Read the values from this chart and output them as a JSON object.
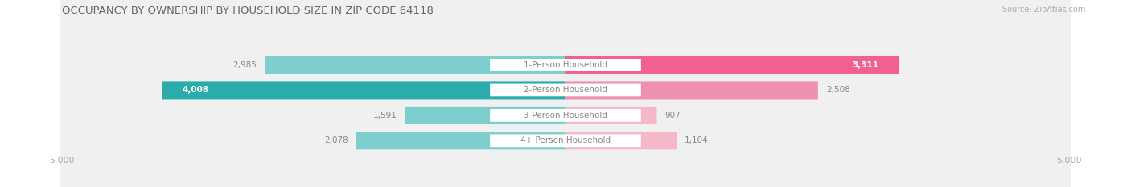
{
  "title": "OCCUPANCY BY OWNERSHIP BY HOUSEHOLD SIZE IN ZIP CODE 64118",
  "source": "Source: ZipAtlas.com",
  "categories": [
    "1-Person Household",
    "2-Person Household",
    "3-Person Household",
    "4+ Person Household"
  ],
  "owner_values": [
    2985,
    4008,
    1591,
    2078
  ],
  "renter_values": [
    3311,
    2508,
    907,
    1104
  ],
  "max_scale": 5000,
  "owner_colors": [
    "#7ECECE",
    "#2AACAC",
    "#7ECECE",
    "#7ECECE"
  ],
  "renter_colors": [
    "#F06090",
    "#F090B0",
    "#F4B8C8",
    "#F4B8C8"
  ],
  "row_bg_color": "#F0F0F0",
  "title_color": "#666666",
  "source_color": "#AAAAAA",
  "axis_label_color": "#AAAAAA",
  "value_color_outside": "#888888",
  "value_color_inside": "#FFFFFF",
  "cat_label_color": "#888888",
  "owner_legend_color": "#2AACAC",
  "renter_legend_color": "#F06090",
  "category_label_fontsize": 7.5,
  "value_fontsize": 7.5,
  "title_fontsize": 9.5,
  "axis_fontsize": 8,
  "legend_fontsize": 8
}
